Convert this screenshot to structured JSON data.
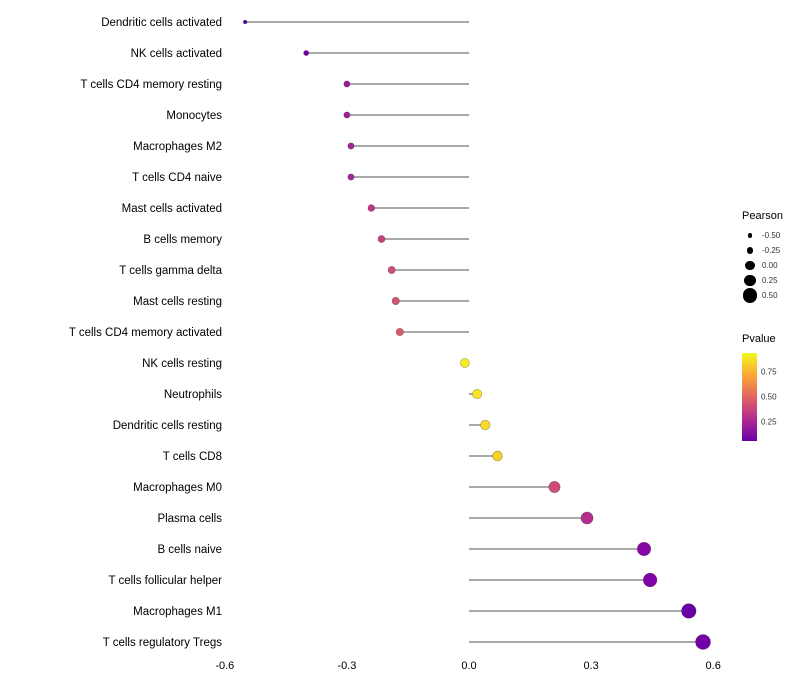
{
  "chart_data": {
    "type": "lollipop",
    "title": "",
    "xlabel": "",
    "ylabel": "",
    "xlim": [
      -0.65,
      0.67
    ],
    "grid": false,
    "legend_position": "right",
    "x_ticks": [
      -0.6,
      -0.3,
      0.0,
      0.3,
      0.6
    ],
    "x_tick_labels": [
      "-0.6",
      "-0.3",
      "0.0",
      "0.3",
      "0.6"
    ],
    "points": [
      {
        "category": "Dendritic cells activated",
        "pearson": -0.55,
        "pvalue": 0.03,
        "color": "#4903A0"
      },
      {
        "category": "NK cells activated",
        "pearson": -0.4,
        "pvalue": 0.08,
        "color": "#7701A6"
      },
      {
        "category": "T cells CD4 memory resting",
        "pearson": -0.3,
        "pvalue": 0.18,
        "color": "#9C1C97"
      },
      {
        "category": "Monocytes",
        "pearson": -0.3,
        "pvalue": 0.18,
        "color": "#A02296"
      },
      {
        "category": "Macrophages M2",
        "pearson": -0.29,
        "pvalue": 0.19,
        "color": "#A32695"
      },
      {
        "category": "T cells CD4 naive",
        "pearson": -0.29,
        "pvalue": 0.19,
        "color": "#A52994"
      },
      {
        "category": "Mast cells activated",
        "pearson": -0.24,
        "pvalue": 0.3,
        "color": "#BC3587"
      },
      {
        "category": "B cells memory",
        "pearson": -0.215,
        "pvalue": 0.35,
        "color": "#C7427C"
      },
      {
        "category": "T cells gamma delta",
        "pearson": -0.19,
        "pvalue": 0.42,
        "color": "#D04E73"
      },
      {
        "category": "Mast cells resting",
        "pearson": -0.18,
        "pvalue": 0.45,
        "color": "#D6556D"
      },
      {
        "category": "T cells CD4 memory activated",
        "pearson": -0.17,
        "pvalue": 0.48,
        "color": "#DA5C68"
      },
      {
        "category": "NK cells resting",
        "pearson": -0.01,
        "pvalue": 0.95,
        "color": "#F7EC20"
      },
      {
        "category": "Neutrophils",
        "pearson": 0.02,
        "pvalue": 0.9,
        "color": "#F7E322"
      },
      {
        "category": "Dendritic cells resting",
        "pearson": 0.04,
        "pvalue": 0.86,
        "color": "#F9DB24"
      },
      {
        "category": "T cells CD8",
        "pearson": 0.07,
        "pvalue": 0.8,
        "color": "#FACF26"
      },
      {
        "category": "Macrophages M0",
        "pearson": 0.21,
        "pvalue": 0.4,
        "color": "#CE4C75"
      },
      {
        "category": "Plasma cells",
        "pearson": 0.29,
        "pvalue": 0.22,
        "color": "#B42E8D"
      },
      {
        "category": "B cells naive",
        "pearson": 0.43,
        "pvalue": 0.07,
        "color": "#8708A6"
      },
      {
        "category": "T cells follicular helper",
        "pearson": 0.445,
        "pvalue": 0.06,
        "color": "#7F03A8"
      },
      {
        "category": "Macrophages M1",
        "pearson": 0.54,
        "pvalue": 0.03,
        "color": "#6A00A8"
      },
      {
        "category": "T cells regulatory  Tregs",
        "pearson": 0.575,
        "pvalue": 0.02,
        "color": "#7301A8"
      }
    ]
  },
  "legend": {
    "pearson": {
      "title": "Pearson",
      "entries": [
        {
          "label": "-0.50",
          "value": -0.5
        },
        {
          "label": "-0.25",
          "value": -0.25
        },
        {
          "label": "0.00",
          "value": 0.0
        },
        {
          "label": "0.25",
          "value": 0.25
        },
        {
          "label": "0.50",
          "value": 0.5
        }
      ]
    },
    "pvalue": {
      "title": "Pvalue",
      "ticks": [
        {
          "label": "0.75",
          "pos": 22
        },
        {
          "label": "0.50",
          "pos": 50
        },
        {
          "label": "0.25",
          "pos": 78
        }
      ],
      "gradient": [
        "#F0F921",
        "#FCA636",
        "#E16462",
        "#B12A90",
        "#6A00A8"
      ]
    }
  }
}
